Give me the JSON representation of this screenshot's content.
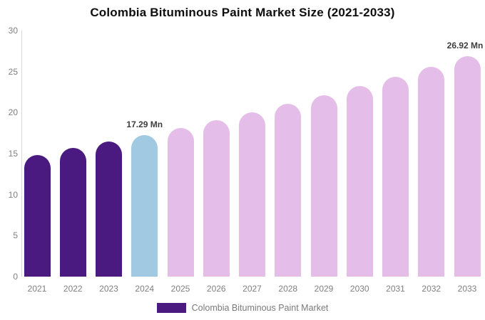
{
  "page": {
    "title": "Colombia Bituminous Paint Market Size (2021-2033)"
  },
  "legend": {
    "label": "Colombia Bituminous Paint Market",
    "swatch_color": "#4b1a80"
  },
  "colors": {
    "historical": "#4b1a80",
    "base_year": "#a1c9e1",
    "forecast": "#e4bde8",
    "axis_text": "#7f7f7f",
    "axis_line": "#d9d9d9",
    "value_label_text": "#3d3d3d"
  },
  "chart_data": {
    "type": "bar",
    "title": "Colombia Bituminous Paint Market Size (2021-2033)",
    "categories": [
      "2021",
      "2022",
      "2023",
      "2024",
      "2025",
      "2026",
      "2027",
      "2028",
      "2029",
      "2030",
      "2031",
      "2032",
      "2033"
    ],
    "values": [
      14.85,
      15.67,
      16.46,
      17.29,
      18.16,
      19.07,
      20.03,
      21.04,
      22.1,
      23.21,
      24.38,
      25.61,
      26.92
    ],
    "bar_roles": [
      "historical",
      "historical",
      "historical",
      "base_year",
      "forecast",
      "forecast",
      "forecast",
      "forecast",
      "forecast",
      "forecast",
      "forecast",
      "forecast",
      "forecast"
    ],
    "unit": "Mn",
    "yticks": [
      0,
      5,
      10,
      15,
      20,
      25,
      30
    ],
    "ylim": [
      0,
      30
    ],
    "xlabel": "",
    "ylabel": "",
    "grid": false,
    "legend_position": "bottom",
    "annotations": [
      {
        "category": "2024",
        "text": "17.29 Mn"
      },
      {
        "category": "2033",
        "text": "26.92 Mn"
      }
    ]
  }
}
